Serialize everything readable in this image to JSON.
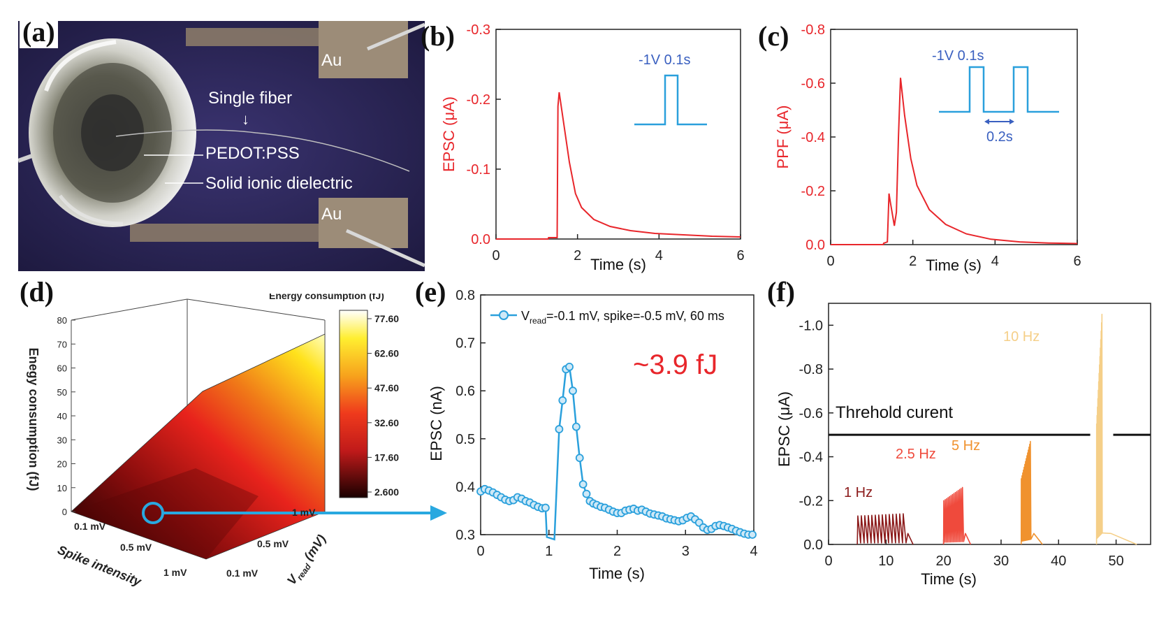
{
  "panels": {
    "a": {
      "letter": "(a)",
      "labels": {
        "au_top": "Au",
        "au_bottom": "Au",
        "single_fiber": "Single fiber",
        "arrow": "↓",
        "pedot": "PEDOT:PSS",
        "dielectric": "Solid ionic dielectric"
      }
    },
    "b": {
      "letter": "(b)"
    },
    "c": {
      "letter": "(c)"
    },
    "d": {
      "letter": "(d)",
      "z_label": "Enegy consumption (fJ)",
      "z_ticks": [
        "0",
        "10",
        "20",
        "30",
        "40",
        "50",
        "60",
        "70",
        "80"
      ],
      "x_label": "Spike intensity",
      "x_ticks": [
        "0.1 mV",
        "0.5 mV",
        "1 mV"
      ],
      "y_label_main": "V",
      "y_label_sub": "read",
      "y_label_unit": " (mV)",
      "y_ticks": [
        "0.1 mV",
        "0.5 mV",
        "1 mV"
      ],
      "colorbar_title": "Energy consumption (fJ)",
      "colorbar_ticks": [
        "77.60",
        "62.60",
        "47.60",
        "32.60",
        "17.60",
        "2.600"
      ],
      "colors": {
        "low": "#1a0000",
        "mid": "#e8231c",
        "high": "#ffe926",
        "top": "#ffffff",
        "marker": "#29a8e0"
      }
    },
    "e": {
      "letter": "(e)"
    },
    "f": {
      "letter": "(f)"
    }
  },
  "chart_data": [
    {
      "id": "b",
      "type": "line",
      "title": "",
      "xlabel": "Time (s)",
      "ylabel": "EPSC (μA)",
      "xlim": [
        0,
        6
      ],
      "ylim": [
        0.0,
        -0.3
      ],
      "x_ticks": [
        "0",
        "2",
        "4",
        "6"
      ],
      "y_ticks": [
        "0.0",
        "-0.1",
        "-0.2",
        "-0.3"
      ],
      "series": [
        {
          "name": "EPSC",
          "color": "#e8262b",
          "x": [
            0,
            1.28,
            1.29,
            1.5,
            1.52,
            1.55,
            1.65,
            1.8,
            1.95,
            2.1,
            2.4,
            2.8,
            3.3,
            3.9,
            4.6,
            5.3,
            6
          ],
          "y": [
            0.0,
            0.0,
            -0.002,
            -0.002,
            -0.19,
            -0.21,
            -0.17,
            -0.11,
            -0.065,
            -0.045,
            -0.028,
            -0.018,
            -0.012,
            -0.008,
            -0.006,
            -0.004,
            -0.003
          ]
        }
      ],
      "annotation": {
        "text": "-1V 0.1s",
        "color": "#3a60c0"
      },
      "inset_color": "#2aa0dc"
    },
    {
      "id": "c",
      "type": "line",
      "title": "",
      "xlabel": "Time (s)",
      "ylabel": "PPF (μA)",
      "xlim": [
        0,
        6
      ],
      "ylim": [
        0.0,
        -0.8
      ],
      "x_ticks": [
        "0",
        "2",
        "4",
        "6"
      ],
      "y_ticks": [
        "0.0",
        "-0.2",
        "-0.4",
        "-0.6",
        "-0.8"
      ],
      "series": [
        {
          "name": "PPF",
          "color": "#e8262b",
          "x": [
            0,
            1.28,
            1.29,
            1.38,
            1.42,
            1.45,
            1.55,
            1.6,
            1.65,
            1.7,
            1.8,
            1.95,
            2.1,
            2.4,
            2.8,
            3.3,
            3.9,
            4.6,
            5.3,
            6
          ],
          "y": [
            0.0,
            0.0,
            -0.005,
            -0.01,
            -0.19,
            -0.16,
            -0.07,
            -0.12,
            -0.4,
            -0.62,
            -0.48,
            -0.32,
            -0.22,
            -0.13,
            -0.075,
            -0.04,
            -0.02,
            -0.01,
            -0.006,
            -0.004
          ]
        }
      ],
      "annotation": {
        "text": "-1V 0.1s",
        "color": "#3a60c0"
      },
      "interval_label": "0.2s",
      "inset_color": "#2aa0dc"
    },
    {
      "id": "e",
      "type": "line",
      "title": "",
      "xlabel": "Time (s)",
      "ylabel": "EPSC (nA)",
      "xlim": [
        0,
        4
      ],
      "ylim": [
        0.3,
        0.8
      ],
      "x_ticks": [
        "0",
        "1",
        "2",
        "3",
        "4"
      ],
      "y_ticks": [
        "0.3",
        "0.4",
        "0.5",
        "0.6",
        "0.7",
        "0.8"
      ],
      "legend_main": "V",
      "legend_sub": "read",
      "legend_rest": "=-0.1 mV, spike=-0.5 mV, 60 ms",
      "big_label": "~3.9 fJ",
      "series": [
        {
          "name": "Vread",
          "color": "#2aa0dc",
          "x": [
            0,
            0.06,
            0.12,
            0.18,
            0.24,
            0.3,
            0.36,
            0.42,
            0.48,
            0.54,
            0.6,
            0.66,
            0.72,
            0.78,
            0.84,
            0.9,
            0.95,
            0.97,
            1.08,
            1.15,
            1.2,
            1.25,
            1.3,
            1.35,
            1.4,
            1.45,
            1.5,
            1.55,
            1.6,
            1.65,
            1.7,
            1.76,
            1.82,
            1.88,
            1.94,
            2.0,
            2.06,
            2.12,
            2.18,
            2.24,
            2.3,
            2.36,
            2.42,
            2.48,
            2.54,
            2.6,
            2.66,
            2.72,
            2.78,
            2.84,
            2.9,
            2.96,
            3.02,
            3.08,
            3.14,
            3.2,
            3.26,
            3.32,
            3.38,
            3.44,
            3.5,
            3.56,
            3.62,
            3.68,
            3.74,
            3.8,
            3.86,
            3.92,
            3.98
          ],
          "y": [
            0.39,
            0.395,
            0.392,
            0.388,
            0.383,
            0.378,
            0.373,
            0.37,
            0.372,
            0.378,
            0.375,
            0.37,
            0.367,
            0.362,
            0.358,
            0.355,
            0.356,
            0.295,
            0.29,
            0.52,
            0.58,
            0.645,
            0.65,
            0.6,
            0.525,
            0.46,
            0.405,
            0.385,
            0.37,
            0.365,
            0.362,
            0.358,
            0.356,
            0.352,
            0.348,
            0.345,
            0.345,
            0.35,
            0.352,
            0.354,
            0.35,
            0.352,
            0.348,
            0.344,
            0.342,
            0.34,
            0.338,
            0.334,
            0.332,
            0.33,
            0.328,
            0.33,
            0.335,
            0.338,
            0.332,
            0.325,
            0.315,
            0.31,
            0.312,
            0.318,
            0.32,
            0.318,
            0.315,
            0.312,
            0.308,
            0.305,
            0.302,
            0.3,
            0.3
          ]
        }
      ]
    },
    {
      "id": "f",
      "type": "line",
      "title": "",
      "xlabel": "Time (s)",
      "ylabel": "EPSC (μA)",
      "xlim": [
        0,
        56
      ],
      "ylim": [
        0.0,
        -1.1
      ],
      "x_ticks": [
        "0",
        "10",
        "20",
        "30",
        "40",
        "50"
      ],
      "y_ticks": [
        "0.0",
        "-0.2",
        "-0.4",
        "-0.6",
        "-0.8",
        "-1.0"
      ],
      "threshold_label": "Threhold curent",
      "threshold_value": -0.5,
      "series": [
        {
          "name": "1 Hz",
          "color": "#8b1a1a",
          "t_start": 5,
          "t_end": 13.5,
          "n_spikes": 14,
          "peak_start": -0.13,
          "peak_end": -0.14
        },
        {
          "name": "2.5 Hz",
          "color": "#ef4a3c",
          "t_start": 20,
          "t_end": 23.5,
          "n_spikes": 14,
          "peak_start": -0.2,
          "peak_end": -0.26
        },
        {
          "name": "5 Hz",
          "color": "#f0922e",
          "t_start": 33.5,
          "t_end": 35.2,
          "n_spikes": 14,
          "peak_start": -0.3,
          "peak_end": -0.47
        },
        {
          "name": "10 Hz",
          "color": "#f5cf88",
          "t_start": 46.6,
          "t_end": 47.6,
          "n_spikes": 14,
          "peak_start": -0.55,
          "peak_end": -1.05
        }
      ]
    }
  ]
}
